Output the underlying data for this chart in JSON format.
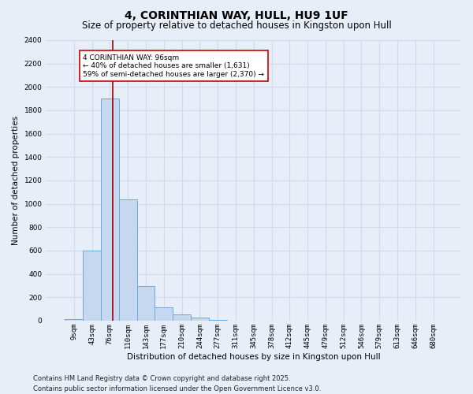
{
  "title": "4, CORINTHIAN WAY, HULL, HU9 1UF",
  "subtitle": "Size of property relative to detached houses in Kingston upon Hull",
  "xlabel": "Distribution of detached houses by size in Kingston upon Hull",
  "ylabel": "Number of detached properties",
  "categories": [
    "9sqm",
    "43sqm",
    "76sqm",
    "110sqm",
    "143sqm",
    "177sqm",
    "210sqm",
    "244sqm",
    "277sqm",
    "311sqm",
    "345sqm",
    "378sqm",
    "412sqm",
    "445sqm",
    "479sqm",
    "512sqm",
    "546sqm",
    "579sqm",
    "613sqm",
    "646sqm",
    "680sqm"
  ],
  "values": [
    15,
    600,
    1900,
    1040,
    295,
    115,
    55,
    25,
    5,
    2,
    1,
    0,
    0,
    0,
    0,
    0,
    0,
    0,
    0,
    0,
    0
  ],
  "bar_color": "#c5d8ef",
  "bar_edge_color": "#6baad8",
  "vline_x_offset": 0.15,
  "vline_bin_index": 2,
  "vline_color": "#990000",
  "annotation_text": "4 CORINTHIAN WAY: 96sqm\n← 40% of detached houses are smaller (1,631)\n59% of semi-detached houses are larger (2,370) →",
  "annotation_box_color": "#ffffff",
  "annotation_box_edge": "#cc0000",
  "ylim_max": 2400,
  "ytick_step": 200,
  "footer": "Contains HM Land Registry data © Crown copyright and database right 2025.\nContains public sector information licensed under the Open Government Licence v3.0.",
  "bg_color": "#e8eef8",
  "grid_color": "#d0daea",
  "title_fontsize": 10,
  "subtitle_fontsize": 8.5,
  "xlabel_fontsize": 7.5,
  "ylabel_fontsize": 7.5,
  "tick_fontsize": 6.5,
  "annotation_fontsize": 6.5,
  "footer_fontsize": 6
}
